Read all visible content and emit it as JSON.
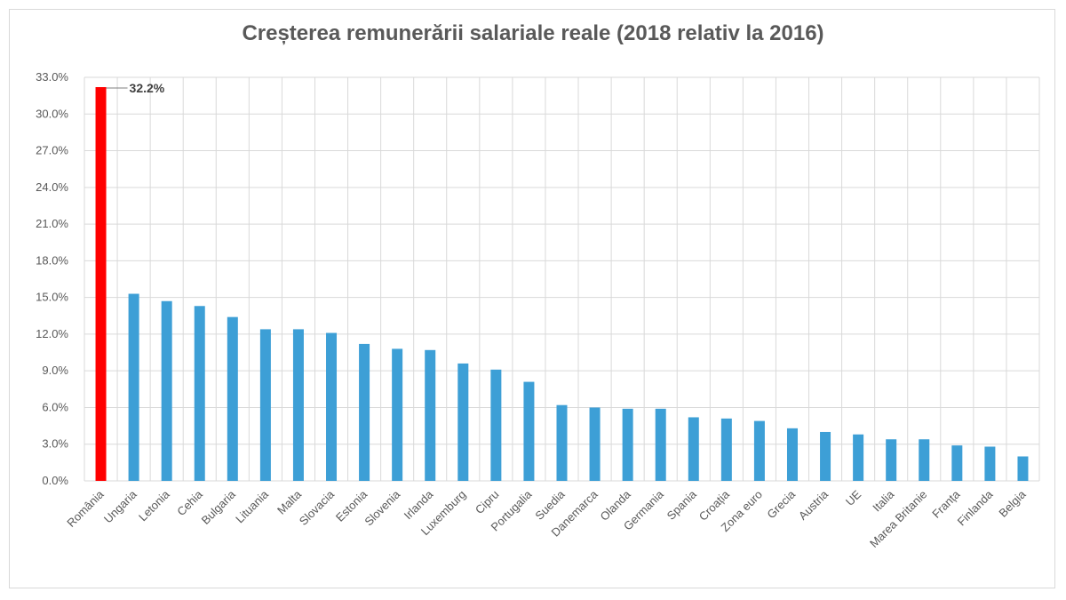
{
  "chart_data": {
    "type": "bar",
    "title": "Creșterea remunerării salariale reale (2018 relativ la 2016)",
    "xlabel": "",
    "ylabel": "",
    "ylim": [
      0,
      33
    ],
    "yticks": [
      "0.0%",
      "3.0%",
      "6.0%",
      "9.0%",
      "12.0%",
      "15.0%",
      "18.0%",
      "21.0%",
      "24.0%",
      "27.0%",
      "30.0%",
      "33.0%"
    ],
    "grid": true,
    "categories": [
      "România",
      "Ungaria",
      "Letonia",
      "Cehia",
      "Bulgaria",
      "Lituania",
      "Malta",
      "Slovacia",
      "Estonia",
      "Slovenia",
      "Irlanda",
      "Luxemburg",
      "Cipru",
      "Portugalia",
      "Suedia",
      "Danemarca",
      "Olanda",
      "Germania",
      "Spania",
      "Croația",
      "Zona euro",
      "Grecia",
      "Austria",
      "UE",
      "Italia",
      "Marea Britanie",
      "Franța",
      "Finlanda",
      "Belgia"
    ],
    "values": [
      32.2,
      15.3,
      14.7,
      14.3,
      13.4,
      12.4,
      12.4,
      12.1,
      11.2,
      10.8,
      10.7,
      9.6,
      9.1,
      8.1,
      6.2,
      6.0,
      5.9,
      5.9,
      5.2,
      5.1,
      4.9,
      4.3,
      4.0,
      3.8,
      3.4,
      3.4,
      2.9,
      2.8,
      2.0
    ],
    "highlight": {
      "index": 0,
      "color": "#ff0000",
      "label": "32.2%"
    },
    "bar_color": "#3d9fd6"
  }
}
